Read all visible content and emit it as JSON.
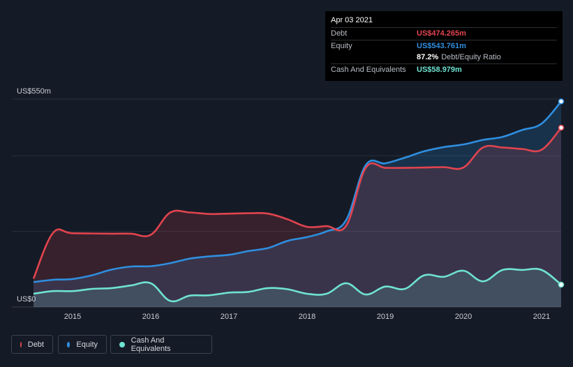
{
  "tooltip": {
    "date": "Apr 03 2021",
    "debt_label": "Debt",
    "debt_value": "US$474.265m",
    "equity_label": "Equity",
    "equity_value": "US$543.761m",
    "ratio_value": "87.2%",
    "ratio_label": "Debt/Equity Ratio",
    "cash_label": "Cash And Equivalents",
    "cash_value": "US$58.979m"
  },
  "legend": {
    "debt": "Debt",
    "equity": "Equity",
    "cash": "Cash And Equivalents"
  },
  "colors": {
    "debt": "#e2444f",
    "equity": "#2f8fe0",
    "cash": "#6fe3d1"
  },
  "chart_data": {
    "type": "area",
    "ylim": [
      0,
      550
    ],
    "xlim": [
      2014.5,
      2021.25
    ],
    "y_tick_labels": [
      {
        "value": 550,
        "label": "US$550m"
      },
      {
        "value": 0,
        "label": "US$0"
      }
    ],
    "gridlines": [
      550,
      400,
      200
    ],
    "x_tick_labels": [
      "2015",
      "2016",
      "2017",
      "2018",
      "2019",
      "2020",
      "2021"
    ],
    "series": [
      {
        "name": "Debt",
        "x": [
          2014.5,
          2014.75,
          2015.0,
          2015.5,
          2015.75,
          2016.0,
          2016.25,
          2016.5,
          2016.75,
          2017.0,
          2017.25,
          2017.5,
          2017.75,
          2018.0,
          2018.25,
          2018.5,
          2018.75,
          2019.0,
          2019.25,
          2019.5,
          2019.75,
          2020.0,
          2020.25,
          2020.5,
          2020.75,
          2021.0,
          2021.25
        ],
        "values": [
          75,
          196,
          195,
          194,
          194,
          191,
          250,
          250,
          246,
          247,
          248,
          247,
          232,
          212,
          214,
          215,
          368,
          368,
          368,
          369,
          370,
          369,
          422,
          422,
          418,
          416,
          474.3
        ]
      },
      {
        "name": "Equity",
        "x": [
          2014.5,
          2014.75,
          2015.0,
          2015.25,
          2015.5,
          2015.75,
          2016.0,
          2016.25,
          2016.5,
          2016.75,
          2017.0,
          2017.25,
          2017.5,
          2017.75,
          2018.0,
          2018.25,
          2018.5,
          2018.75,
          2019.0,
          2019.25,
          2019.5,
          2019.75,
          2020.0,
          2020.25,
          2020.5,
          2020.75,
          2021.0,
          2021.25
        ],
        "values": [
          66,
          72,
          74,
          84,
          99,
          107,
          108,
          116,
          128,
          134,
          138,
          148,
          156,
          175,
          185,
          200,
          230,
          375,
          380,
          395,
          412,
          423,
          430,
          442,
          450,
          468,
          485,
          543.8
        ]
      },
      {
        "name": "Cash And Equivalents",
        "x": [
          2014.5,
          2014.75,
          2015.0,
          2015.25,
          2015.5,
          2015.75,
          2016.0,
          2016.25,
          2016.5,
          2016.75,
          2017.0,
          2017.25,
          2017.5,
          2017.75,
          2018.0,
          2018.25,
          2018.5,
          2018.75,
          2019.0,
          2019.25,
          2019.5,
          2019.75,
          2020.0,
          2020.25,
          2020.5,
          2020.75,
          2021.0,
          2021.25
        ],
        "values": [
          35,
          42,
          42,
          48,
          50,
          57,
          63,
          16,
          30,
          31,
          38,
          40,
          50,
          47,
          35,
          35,
          63,
          33,
          54,
          48,
          84,
          80,
          96,
          68,
          98,
          98,
          98,
          59
        ]
      }
    ]
  }
}
